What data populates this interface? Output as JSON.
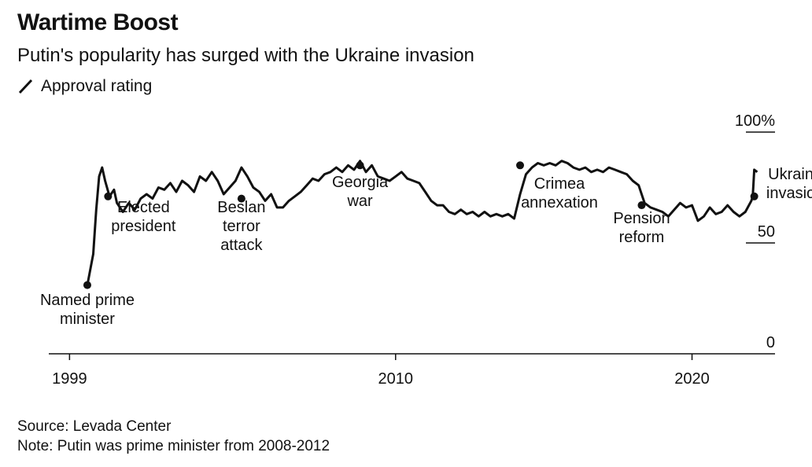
{
  "header": {
    "title": "Wartime Boost",
    "subtitle": "Putin's popularity has surged with the Ukraine invasion",
    "legend_label": "Approval rating"
  },
  "footer": {
    "source": "Source: Levada Center",
    "note": "Note: Putin was prime minister from 2008-2012"
  },
  "colors": {
    "line": "#111111",
    "axis": "#111111",
    "background": "#ffffff"
  },
  "chart_data": {
    "type": "line",
    "title": "Wartime Boost",
    "subtitle": "Putin's popularity has surged with the Ukraine invasion",
    "xlabel": "",
    "ylabel": "",
    "x_ticks": [
      {
        "value": 1999,
        "label": "1999"
      },
      {
        "value": 2010,
        "label": "2010"
      },
      {
        "value": 2020,
        "label": "2020"
      }
    ],
    "y_ticks": [
      {
        "value": 100,
        "label": "100%"
      },
      {
        "value": 50,
        "label": "50"
      },
      {
        "value": 0,
        "label": "0"
      }
    ],
    "xlim": [
      1998.3,
      2022.8
    ],
    "ylim": [
      0,
      100
    ],
    "series": [
      {
        "name": "Approval rating",
        "points": [
          [
            1999.6,
            31
          ],
          [
            1999.8,
            45
          ],
          [
            1999.9,
            65
          ],
          [
            2000.0,
            80
          ],
          [
            2000.1,
            84
          ],
          [
            2000.2,
            78
          ],
          [
            2000.35,
            71
          ],
          [
            2000.5,
            74
          ],
          [
            2000.6,
            68
          ],
          [
            2000.8,
            64
          ],
          [
            2001.0,
            68
          ],
          [
            2001.2,
            65
          ],
          [
            2001.4,
            70
          ],
          [
            2001.6,
            72
          ],
          [
            2001.8,
            70
          ],
          [
            2002.0,
            75
          ],
          [
            2002.2,
            74
          ],
          [
            2002.4,
            77
          ],
          [
            2002.6,
            73
          ],
          [
            2002.8,
            78
          ],
          [
            2003.0,
            76
          ],
          [
            2003.2,
            73
          ],
          [
            2003.4,
            80
          ],
          [
            2003.6,
            78
          ],
          [
            2003.8,
            82
          ],
          [
            2004.0,
            78
          ],
          [
            2004.2,
            72
          ],
          [
            2004.4,
            75
          ],
          [
            2004.6,
            78
          ],
          [
            2004.8,
            84
          ],
          [
            2005.0,
            80
          ],
          [
            2005.2,
            75
          ],
          [
            2005.4,
            73
          ],
          [
            2005.6,
            69
          ],
          [
            2005.8,
            72
          ],
          [
            2006.0,
            66
          ],
          [
            2006.2,
            66
          ],
          [
            2006.4,
            69
          ],
          [
            2006.6,
            71
          ],
          [
            2006.8,
            73
          ],
          [
            2007.0,
            76
          ],
          [
            2007.2,
            79
          ],
          [
            2007.4,
            78
          ],
          [
            2007.6,
            81
          ],
          [
            2007.8,
            82
          ],
          [
            2008.0,
            84
          ],
          [
            2008.2,
            82
          ],
          [
            2008.4,
            85
          ],
          [
            2008.6,
            83
          ],
          [
            2008.8,
            87
          ],
          [
            2009.0,
            82
          ],
          [
            2009.2,
            85
          ],
          [
            2009.4,
            80
          ],
          [
            2009.6,
            79
          ],
          [
            2009.8,
            78
          ],
          [
            2010.0,
            80
          ],
          [
            2010.2,
            82
          ],
          [
            2010.4,
            79
          ],
          [
            2010.6,
            78
          ],
          [
            2010.8,
            77
          ],
          [
            2011.0,
            73
          ],
          [
            2011.2,
            69
          ],
          [
            2011.4,
            67
          ],
          [
            2011.6,
            67
          ],
          [
            2011.8,
            64
          ],
          [
            2012.0,
            63
          ],
          [
            2012.2,
            65
          ],
          [
            2012.4,
            63
          ],
          [
            2012.6,
            64
          ],
          [
            2012.8,
            62
          ],
          [
            2013.0,
            64
          ],
          [
            2013.2,
            62
          ],
          [
            2013.4,
            63
          ],
          [
            2013.6,
            62
          ],
          [
            2013.8,
            63
          ],
          [
            2014.0,
            61
          ],
          [
            2014.2,
            72
          ],
          [
            2014.4,
            81
          ],
          [
            2014.6,
            84
          ],
          [
            2014.8,
            86
          ],
          [
            2015.0,
            85
          ],
          [
            2015.2,
            86
          ],
          [
            2015.4,
            85
          ],
          [
            2015.6,
            87
          ],
          [
            2015.8,
            86
          ],
          [
            2016.0,
            84
          ],
          [
            2016.2,
            83
          ],
          [
            2016.4,
            84
          ],
          [
            2016.6,
            82
          ],
          [
            2016.8,
            83
          ],
          [
            2017.0,
            82
          ],
          [
            2017.2,
            84
          ],
          [
            2017.4,
            83
          ],
          [
            2017.6,
            82
          ],
          [
            2017.8,
            81
          ],
          [
            2018.0,
            78
          ],
          [
            2018.2,
            76
          ],
          [
            2018.4,
            68
          ],
          [
            2018.6,
            66
          ],
          [
            2018.8,
            65
          ],
          [
            2019.0,
            64
          ],
          [
            2019.2,
            62
          ],
          [
            2019.4,
            65
          ],
          [
            2019.6,
            68
          ],
          [
            2019.8,
            66
          ],
          [
            2020.0,
            67
          ],
          [
            2020.2,
            60
          ],
          [
            2020.4,
            62
          ],
          [
            2020.6,
            66
          ],
          [
            2020.8,
            63
          ],
          [
            2021.0,
            64
          ],
          [
            2021.2,
            67
          ],
          [
            2021.4,
            64
          ],
          [
            2021.6,
            62
          ],
          [
            2021.8,
            64
          ],
          [
            2022.0,
            69
          ],
          [
            2022.05,
            71
          ],
          [
            2022.1,
            83
          ],
          [
            2022.2,
            82
          ]
        ]
      }
    ],
    "annotations": [
      {
        "x": 1999.6,
        "y": 31,
        "lines": [
          "Named prime",
          "minister"
        ]
      },
      {
        "x": 2000.3,
        "y": 71,
        "lines": [
          "Elected",
          "president"
        ]
      },
      {
        "x": 2004.8,
        "y": 70,
        "lines": [
          "Beslan",
          "terror",
          "attack"
        ]
      },
      {
        "x": 2008.8,
        "y": 85,
        "lines": [
          "Georgia",
          "war"
        ]
      },
      {
        "x": 2014.2,
        "y": 85,
        "lines": [
          "Crimea",
          "annexation"
        ]
      },
      {
        "x": 2018.3,
        "y": 67,
        "lines": [
          "Pension",
          "reform"
        ]
      },
      {
        "x": 2022.1,
        "y": 71,
        "lines": [
          "Ukraine",
          "invasion"
        ]
      }
    ]
  }
}
